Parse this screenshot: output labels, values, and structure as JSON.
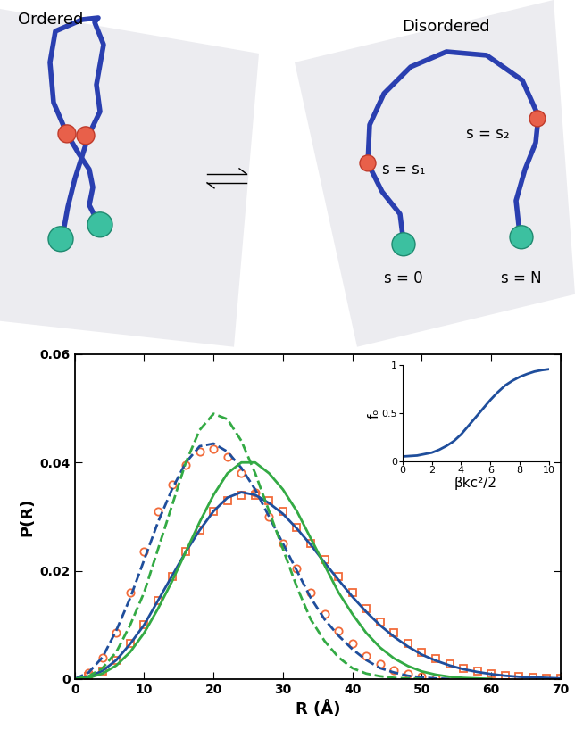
{
  "diagram": {
    "ordered": {
      "label": "Ordered"
    },
    "disordered": {
      "label": "Disordered",
      "positions": [
        "s = 0",
        "s = s₁",
        "s = s₂",
        "s = N"
      ]
    }
  },
  "chart_data": [
    {
      "type": "line",
      "xlabel": "R (Å)",
      "ylabel": "P(R)",
      "xlim": [
        0,
        70
      ],
      "ylim": [
        0,
        0.06
      ],
      "xticks": [
        0,
        10,
        20,
        30,
        40,
        50,
        60,
        70
      ],
      "yticks": [
        0,
        0.02,
        0.04,
        0.06
      ],
      "series": [
        {
          "type": "scatter",
          "marker": "circle",
          "color": "#f26b3a",
          "x": [
            2,
            4,
            6,
            8,
            10,
            12,
            14,
            16,
            18,
            20,
            22,
            24,
            26,
            28,
            30,
            32,
            34,
            36,
            38,
            40,
            42,
            44,
            46,
            48,
            50,
            52
          ],
          "values": [
            0.0012,
            0.004,
            0.0085,
            0.016,
            0.0235,
            0.031,
            0.036,
            0.0395,
            0.042,
            0.0425,
            0.041,
            0.038,
            0.0345,
            0.03,
            0.025,
            0.0205,
            0.016,
            0.012,
            0.0088,
            0.0065,
            0.0043,
            0.0028,
            0.0017,
            0.001,
            0.0005,
            0.0002
          ]
        },
        {
          "type": "scatter",
          "marker": "square",
          "color": "#f26b3a",
          "x": [
            2,
            4,
            6,
            8,
            10,
            12,
            14,
            16,
            18,
            20,
            22,
            24,
            26,
            28,
            30,
            32,
            34,
            36,
            38,
            40,
            42,
            44,
            46,
            48,
            50,
            52,
            54,
            56,
            58,
            60,
            62,
            64,
            66,
            68,
            70
          ],
          "values": [
            0.0004,
            0.0015,
            0.0035,
            0.0065,
            0.01,
            0.0145,
            0.019,
            0.0235,
            0.0275,
            0.031,
            0.033,
            0.034,
            0.034,
            0.033,
            0.031,
            0.028,
            0.025,
            0.022,
            0.019,
            0.016,
            0.013,
            0.0105,
            0.0085,
            0.0065,
            0.005,
            0.0038,
            0.0028,
            0.002,
            0.0014,
            0.001,
            0.0007,
            0.0005,
            0.0003,
            0.0002,
            0.0001
          ]
        },
        {
          "type": "line",
          "line_style": "dashed",
          "color": "#1f4e9c",
          "x": [
            0,
            2,
            4,
            6,
            8,
            10,
            12,
            14,
            16,
            18,
            20,
            22,
            24,
            26,
            28,
            30,
            32,
            34,
            36,
            38,
            40,
            42,
            44,
            46,
            48,
            50,
            52,
            54
          ],
          "values": [
            0,
            0.0012,
            0.004,
            0.009,
            0.015,
            0.022,
            0.029,
            0.035,
            0.04,
            0.043,
            0.0435,
            0.042,
            0.039,
            0.035,
            0.03,
            0.025,
            0.02,
            0.015,
            0.011,
            0.008,
            0.0055,
            0.0035,
            0.002,
            0.0012,
            0.0006,
            0.0003,
            0.0001,
            0
          ]
        },
        {
          "type": "line",
          "line_style": "solid",
          "color": "#1f4e9c",
          "x": [
            0,
            2,
            4,
            6,
            8,
            10,
            12,
            14,
            16,
            18,
            20,
            22,
            24,
            26,
            28,
            30,
            32,
            34,
            36,
            38,
            40,
            42,
            44,
            46,
            48,
            50,
            52,
            54,
            56,
            58,
            60,
            62,
            64,
            66,
            68,
            70
          ],
          "values": [
            0,
            0.0004,
            0.0015,
            0.0035,
            0.0065,
            0.01,
            0.0145,
            0.019,
            0.0235,
            0.0275,
            0.031,
            0.0335,
            0.0345,
            0.034,
            0.0325,
            0.0305,
            0.0278,
            0.0248,
            0.0215,
            0.0183,
            0.0152,
            0.0124,
            0.0099,
            0.0078,
            0.006,
            0.0045,
            0.0034,
            0.0025,
            0.0018,
            0.0013,
            0.0009,
            0.0006,
            0.0004,
            0.0003,
            0.0002,
            0.0001
          ]
        },
        {
          "type": "line",
          "line_style": "dashed",
          "color": "#33aa44",
          "x": [
            0,
            2,
            4,
            6,
            8,
            10,
            12,
            14,
            16,
            18,
            20,
            22,
            24,
            26,
            28,
            30,
            32,
            34,
            36,
            38,
            40,
            42,
            44,
            46,
            48,
            50
          ],
          "values": [
            0,
            0.0005,
            0.002,
            0.005,
            0.01,
            0.016,
            0.024,
            0.032,
            0.04,
            0.046,
            0.049,
            0.048,
            0.044,
            0.038,
            0.031,
            0.024,
            0.017,
            0.011,
            0.007,
            0.004,
            0.002,
            0.001,
            0.0005,
            0.0002,
            0.0001,
            0
          ]
        },
        {
          "type": "line",
          "line_style": "solid",
          "color": "#33aa44",
          "x": [
            0,
            2,
            4,
            6,
            8,
            10,
            12,
            14,
            16,
            18,
            20,
            22,
            24,
            26,
            28,
            30,
            32,
            34,
            36,
            38,
            40,
            42,
            44,
            46,
            48,
            50,
            52,
            54,
            56,
            58,
            60
          ],
          "values": [
            0,
            0.0002,
            0.001,
            0.0025,
            0.005,
            0.0085,
            0.013,
            0.018,
            0.0235,
            0.029,
            0.034,
            0.038,
            0.04,
            0.04,
            0.038,
            0.035,
            0.031,
            0.026,
            0.021,
            0.016,
            0.012,
            0.0085,
            0.0058,
            0.0038,
            0.0024,
            0.0014,
            0.0008,
            0.0004,
            0.0002,
            0.0001,
            0
          ]
        }
      ]
    },
    {
      "type": "line",
      "xlabel": "βkc²/2",
      "ylabel": "fₒ",
      "xlim": [
        0,
        10
      ],
      "ylim": [
        0,
        1
      ],
      "xticks": [
        0,
        2,
        4,
        6,
        8,
        10
      ],
      "yticks": [
        0,
        0.5,
        1
      ],
      "series": [
        {
          "type": "line",
          "line_style": "solid",
          "color": "#1f4e9c",
          "x": [
            0,
            0.5,
            1,
            1.5,
            2,
            2.5,
            3,
            3.5,
            4,
            4.5,
            5,
            5.5,
            6,
            6.5,
            7,
            7.5,
            8,
            8.5,
            9,
            9.5,
            10
          ],
          "values": [
            0.05,
            0.055,
            0.06,
            0.075,
            0.09,
            0.12,
            0.16,
            0.21,
            0.28,
            0.37,
            0.46,
            0.55,
            0.64,
            0.72,
            0.79,
            0.84,
            0.88,
            0.91,
            0.935,
            0.95,
            0.96
          ]
        }
      ]
    }
  ]
}
